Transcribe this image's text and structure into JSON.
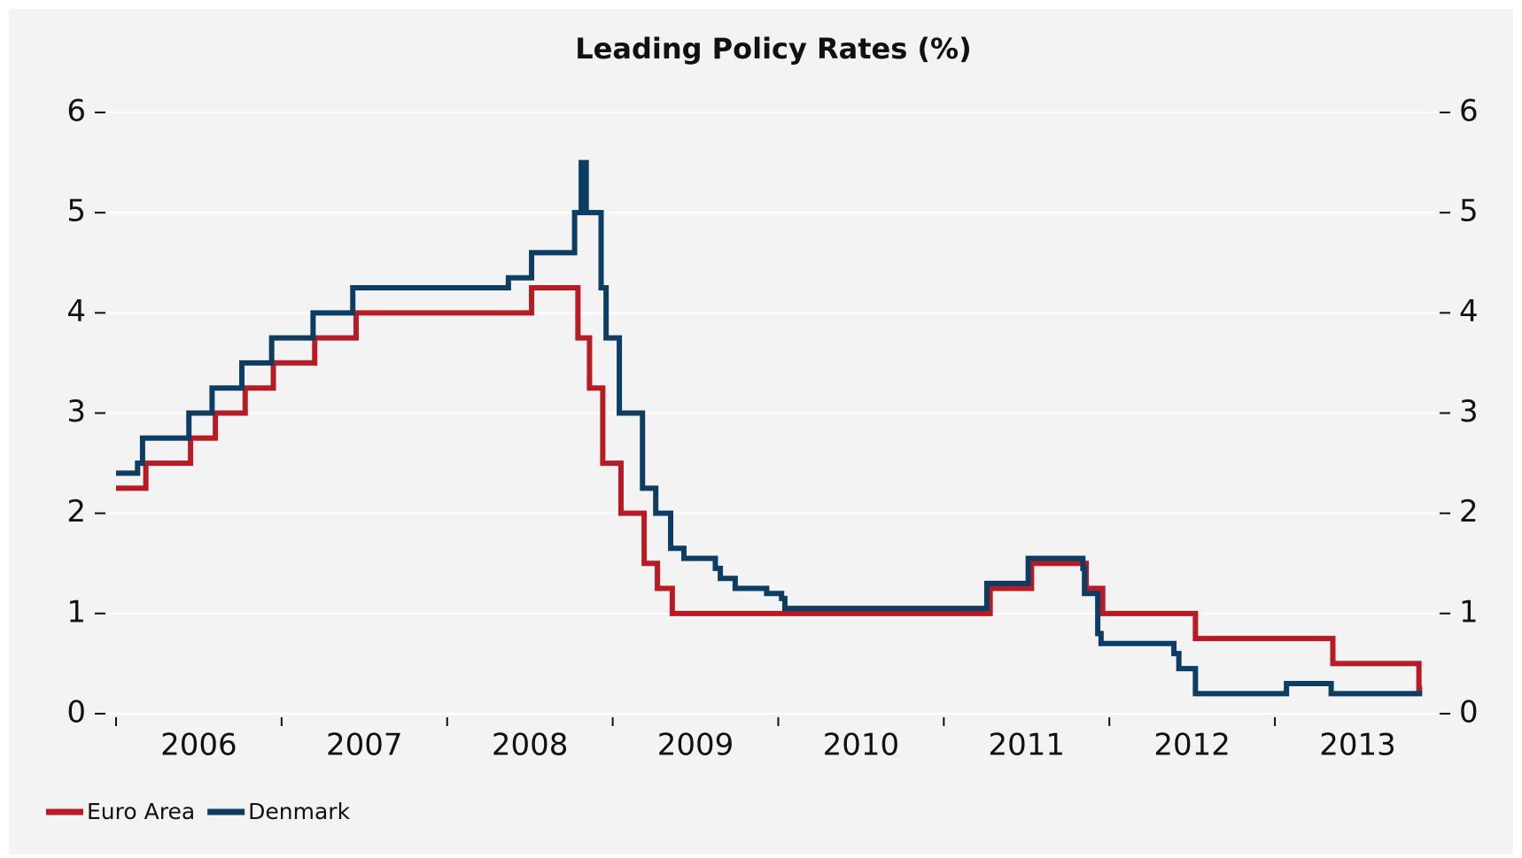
{
  "chart_data": {
    "type": "step",
    "title": "Leading Policy Rates (%)",
    "xlim": [
      2006,
      2013.92
    ],
    "xticks": [
      2006,
      2007,
      2008,
      2009,
      2010,
      2011,
      2012,
      2013
    ],
    "ylim": [
      0,
      6
    ],
    "yticks": [
      0,
      1,
      2,
      3,
      4,
      5,
      6
    ],
    "y2lim": [
      0,
      6
    ],
    "y2ticks": [
      0,
      1,
      2,
      3,
      4,
      5,
      6
    ],
    "grid": true,
    "legend": "bottom-left",
    "series": [
      {
        "name": "Euro Area",
        "color": "#b71c24",
        "x": [
          2006.0,
          2006.18,
          2006.45,
          2006.6,
          2006.78,
          2006.95,
          2007.2,
          2007.45,
          2008.51,
          2008.79,
          2008.86,
          2008.94,
          2009.05,
          2009.19,
          2009.27,
          2009.36,
          2011.28,
          2011.53,
          2011.86,
          2011.96,
          2012.52,
          2013.35,
          2013.87,
          2013.89
        ],
        "values": [
          2.25,
          2.5,
          2.75,
          3.0,
          3.25,
          3.5,
          3.75,
          4.0,
          4.25,
          3.75,
          3.25,
          2.5,
          2.0,
          1.5,
          1.25,
          1.0,
          1.25,
          1.5,
          1.25,
          1.0,
          0.75,
          0.5,
          0.25,
          0.25
        ]
      },
      {
        "name": "Denmark",
        "color": "#0d3d63",
        "x": [
          2006.0,
          2006.13,
          2006.16,
          2006.44,
          2006.58,
          2006.76,
          2006.94,
          2007.19,
          2007.43,
          2008.37,
          2008.51,
          2008.77,
          2008.81,
          2008.84,
          2008.93,
          2008.96,
          2009.04,
          2009.18,
          2009.26,
          2009.35,
          2009.43,
          2009.62,
          2009.65,
          2009.74,
          2009.93,
          2010.02,
          2010.04,
          2011.26,
          2011.51,
          2011.84,
          2011.85,
          2011.93,
          2011.95,
          2012.39,
          2012.42,
          2012.52,
          2013.07,
          2013.34,
          2013.89
        ],
        "values": [
          2.4,
          2.5,
          2.75,
          3.0,
          3.25,
          3.5,
          3.75,
          4.0,
          4.25,
          4.35,
          4.6,
          5.0,
          5.5,
          5.0,
          4.25,
          3.75,
          3.0,
          2.25,
          2.0,
          1.65,
          1.55,
          1.45,
          1.35,
          1.25,
          1.2,
          1.15,
          1.05,
          1.3,
          1.55,
          1.45,
          1.2,
          0.8,
          0.7,
          0.6,
          0.45,
          0.2,
          0.3,
          0.2,
          0.2
        ]
      }
    ]
  }
}
